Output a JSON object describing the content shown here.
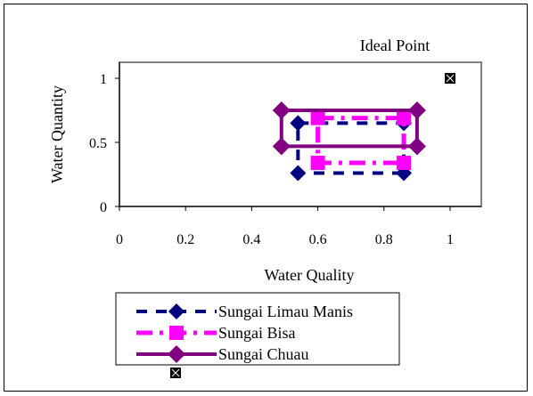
{
  "chart_data": {
    "type": "scatter",
    "annotation": "Ideal Point",
    "xlabel": "Water Quality",
    "ylabel": "Water Quantity",
    "xlim": [
      0,
      1
    ],
    "ylim": [
      0,
      1.1
    ],
    "x_ticks": [
      "0",
      "0.2",
      "0.4",
      "0.6",
      "0.8",
      "1"
    ],
    "x_tick_values": [
      0,
      0.2,
      0.4,
      0.6,
      0.8,
      1
    ],
    "y_ticks": [
      "0",
      "0.5",
      "1"
    ],
    "y_tick_values": [
      0,
      0.5,
      1
    ],
    "grid": false,
    "legend_position": "bottom",
    "ideal_point": {
      "x": 1,
      "y": 1
    },
    "series": [
      {
        "name": "Sungai Limau Manis",
        "color": "#000080",
        "line": "dashed",
        "marker": "diamond",
        "points": [
          {
            "x": 0.54,
            "y": 0.65
          },
          {
            "x": 0.86,
            "y": 0.65
          },
          {
            "x": 0.86,
            "y": 0.26
          },
          {
            "x": 0.54,
            "y": 0.26
          },
          {
            "x": 0.54,
            "y": 0.65
          }
        ]
      },
      {
        "name": "Sungai Bisa",
        "color": "#ff00ff",
        "line": "dashdot",
        "marker": "square",
        "points": [
          {
            "x": 0.6,
            "y": 0.69
          },
          {
            "x": 0.86,
            "y": 0.69
          },
          {
            "x": 0.86,
            "y": 0.34
          },
          {
            "x": 0.6,
            "y": 0.34
          },
          {
            "x": 0.6,
            "y": 0.69
          }
        ]
      },
      {
        "name": "Sungai Chuau",
        "color": "#800080",
        "line": "solid",
        "marker": "diamond",
        "points": [
          {
            "x": 0.49,
            "y": 0.75
          },
          {
            "x": 0.9,
            "y": 0.75
          },
          {
            "x": 0.9,
            "y": 0.47
          },
          {
            "x": 0.49,
            "y": 0.47
          },
          {
            "x": 0.49,
            "y": 0.75
          }
        ]
      }
    ]
  }
}
